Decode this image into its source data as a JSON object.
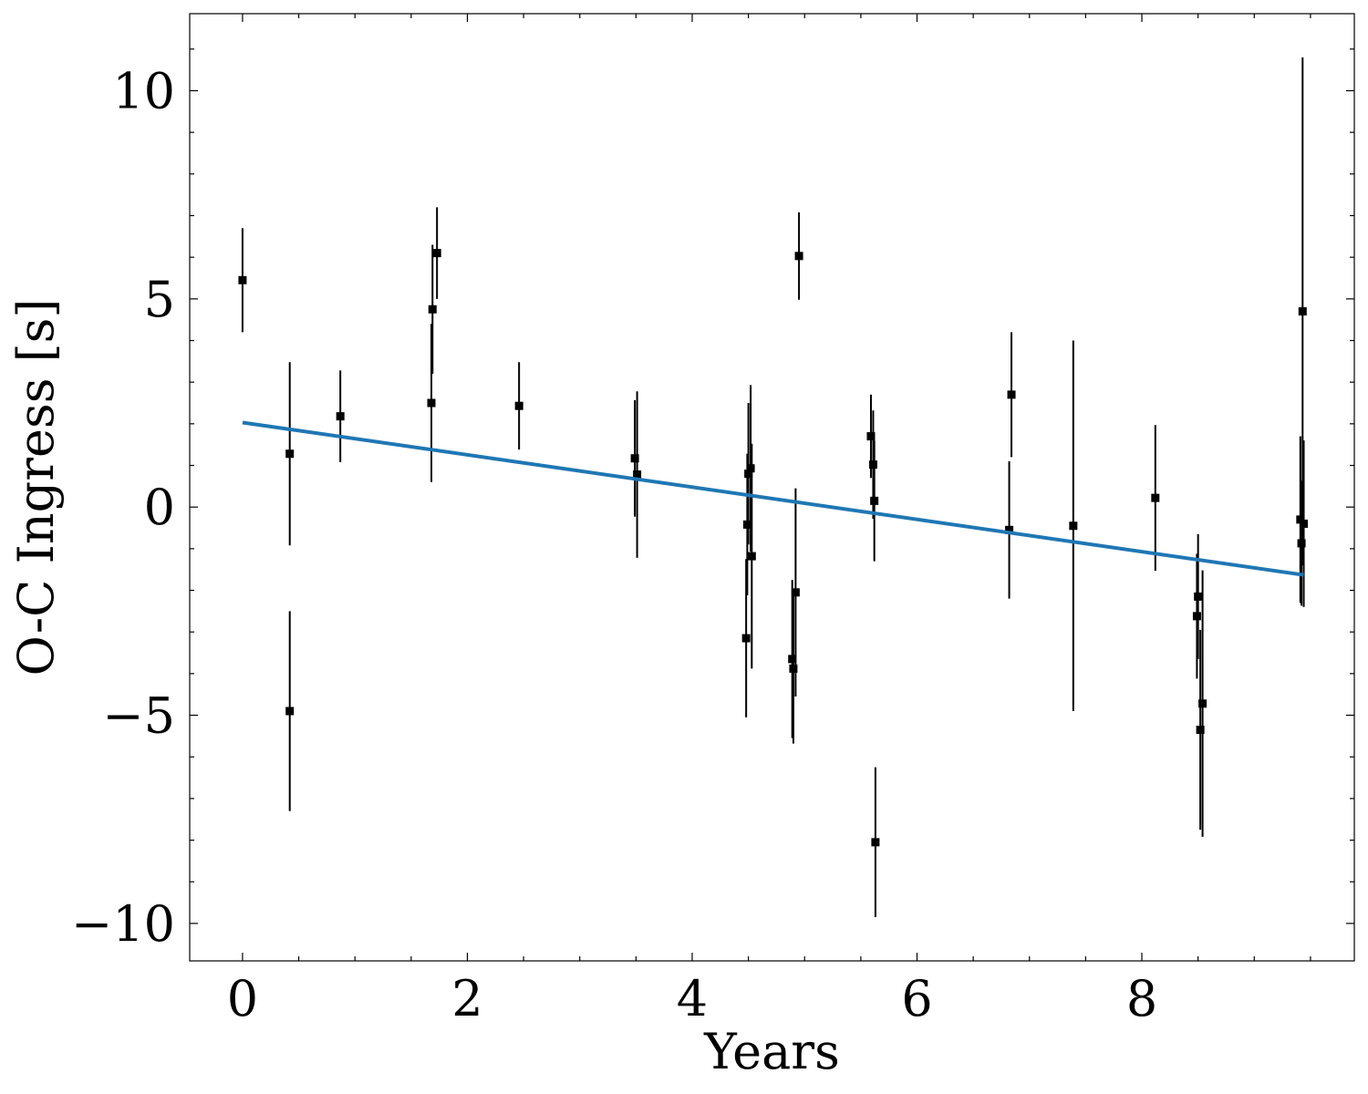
{
  "chart_data": {
    "type": "scatter",
    "xlabel": "Years",
    "ylabel": "O-C Ingress [s]",
    "xlim": [
      -0.47,
      9.89
    ],
    "ylim": [
      -10.9,
      11.85
    ],
    "xticks": [
      0,
      2,
      4,
      6,
      8
    ],
    "yticks": [
      -10,
      -5,
      0,
      5,
      10
    ],
    "xtick_labels": [
      "0",
      "2",
      "4",
      "6",
      "8"
    ],
    "ytick_labels": [
      "−10",
      "−5",
      "0",
      "5",
      "10"
    ],
    "grid": false,
    "legend": "none",
    "colors": {
      "points": "#000000",
      "fit": "#1f77b4",
      "frame": "#000000"
    },
    "points": [
      {
        "x": 0.0,
        "y": 5.45,
        "err": 1.25
      },
      {
        "x": 0.42,
        "y": 1.28,
        "err": 2.2
      },
      {
        "x": 0.42,
        "y": -4.9,
        "err": 2.4
      },
      {
        "x": 0.87,
        "y": 2.18,
        "err": 1.1
      },
      {
        "x": 1.68,
        "y": 2.5,
        "err": 1.9
      },
      {
        "x": 1.69,
        "y": 4.75,
        "err": 1.55
      },
      {
        "x": 1.73,
        "y": 6.1,
        "err": 1.1
      },
      {
        "x": 2.46,
        "y": 2.43,
        "err": 1.05
      },
      {
        "x": 3.49,
        "y": 1.17,
        "err": 1.4
      },
      {
        "x": 3.51,
        "y": 0.78,
        "err": 2.0
      },
      {
        "x": 4.48,
        "y": -3.15,
        "err": 1.9
      },
      {
        "x": 4.49,
        "y": -0.42,
        "err": 1.7
      },
      {
        "x": 4.5,
        "y": 0.8,
        "err": 1.7
      },
      {
        "x": 4.52,
        "y": 0.93,
        "err": 2.0
      },
      {
        "x": 4.53,
        "y": -1.18,
        "err": 2.7
      },
      {
        "x": 4.89,
        "y": -3.65,
        "err": 1.9
      },
      {
        "x": 4.9,
        "y": -3.88,
        "err": 1.8
      },
      {
        "x": 4.92,
        "y": -2.05,
        "err": 2.5
      },
      {
        "x": 4.95,
        "y": 6.03,
        "err": 1.05
      },
      {
        "x": 5.59,
        "y": 1.7,
        "err": 1.0
      },
      {
        "x": 5.61,
        "y": 1.02,
        "err": 1.3
      },
      {
        "x": 5.62,
        "y": 0.15,
        "err": 1.45
      },
      {
        "x": 5.63,
        "y": -8.05,
        "err": 1.8
      },
      {
        "x": 6.82,
        "y": -0.55,
        "err": 1.65
      },
      {
        "x": 6.84,
        "y": 2.7,
        "err": 1.5
      },
      {
        "x": 7.39,
        "y": -0.45,
        "err": 4.45
      },
      {
        "x": 8.12,
        "y": 0.22,
        "err": 1.75
      },
      {
        "x": 8.49,
        "y": -2.62,
        "err": 1.5
      },
      {
        "x": 8.5,
        "y": -2.15,
        "err": 1.5
      },
      {
        "x": 8.52,
        "y": -5.35,
        "err": 2.4
      },
      {
        "x": 8.54,
        "y": -4.72,
        "err": 3.2
      },
      {
        "x": 9.41,
        "y": -0.3,
        "err": 2.0
      },
      {
        "x": 9.42,
        "y": -0.87,
        "err": 1.5
      },
      {
        "x": 9.43,
        "y": 4.7,
        "err": 6.1
      },
      {
        "x": 9.44,
        "y": -0.4,
        "err": 2.0
      }
    ],
    "fit": {
      "x": [
        0.0,
        9.44
      ],
      "y": [
        2.03,
        -1.63
      ]
    }
  }
}
